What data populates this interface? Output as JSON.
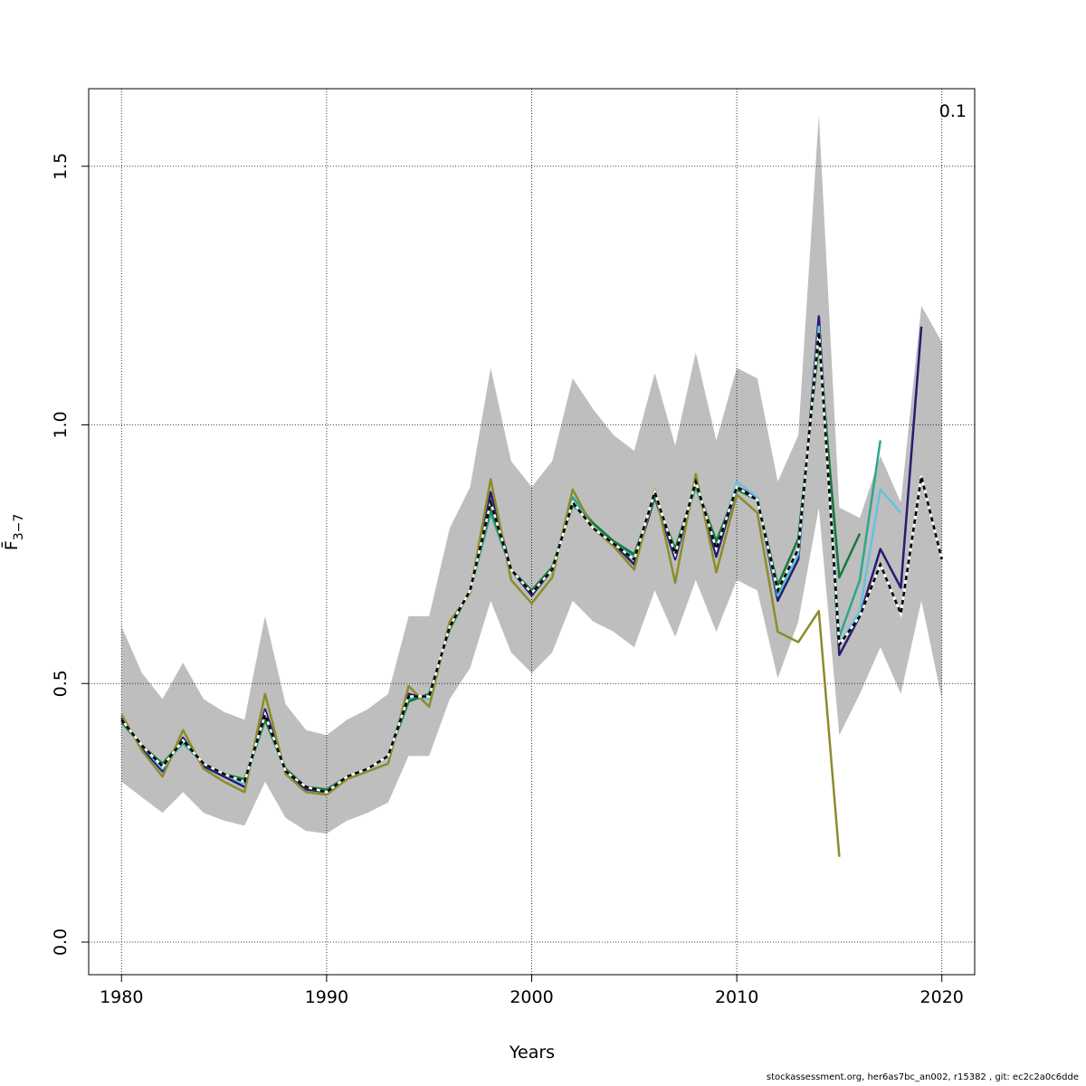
{
  "chart_data": {
    "type": "line",
    "xlabel": "Years",
    "ylabel": "F̄",
    "ylabel_sub": "3−7",
    "corner_label": "0.1",
    "xlim": [
      1978.4,
      2021.6
    ],
    "ylim": [
      -0.063,
      1.65
    ],
    "xticks": [
      1980,
      1990,
      2000,
      2010,
      2020
    ],
    "yticks": [
      0.0,
      0.5,
      1.0,
      1.5
    ],
    "ytick_labels": [
      "0.0",
      "0.5",
      "1.0",
      "1.5"
    ],
    "grid": true,
    "band": {
      "years": [
        1980,
        1981,
        1982,
        1983,
        1984,
        1985,
        1986,
        1987,
        1988,
        1989,
        1990,
        1991,
        1992,
        1993,
        1994,
        1995,
        1996,
        1997,
        1998,
        1999,
        2000,
        2001,
        2002,
        2003,
        2004,
        2005,
        2006,
        2007,
        2008,
        2009,
        2010,
        2011,
        2012,
        2013,
        2014,
        2015,
        2016,
        2017,
        2018,
        2019,
        2020
      ],
      "upper": [
        0.61,
        0.52,
        0.47,
        0.54,
        0.47,
        0.445,
        0.43,
        0.63,
        0.46,
        0.41,
        0.4,
        0.43,
        0.45,
        0.48,
        0.63,
        0.63,
        0.8,
        0.88,
        1.11,
        0.93,
        0.88,
        0.93,
        1.09,
        1.03,
        0.98,
        0.95,
        1.1,
        0.96,
        1.14,
        0.97,
        1.11,
        1.09,
        0.89,
        0.98,
        1.6,
        0.84,
        0.82,
        0.94,
        0.85,
        1.23,
        1.16
      ],
      "lower": [
        0.31,
        0.28,
        0.25,
        0.29,
        0.25,
        0.235,
        0.225,
        0.31,
        0.24,
        0.215,
        0.21,
        0.235,
        0.25,
        0.27,
        0.36,
        0.36,
        0.47,
        0.53,
        0.66,
        0.56,
        0.52,
        0.56,
        0.66,
        0.62,
        0.6,
        0.57,
        0.68,
        0.59,
        0.7,
        0.6,
        0.7,
        0.68,
        0.51,
        0.62,
        0.84,
        0.4,
        0.48,
        0.57,
        0.48,
        0.66,
        0.47
      ]
    },
    "series": [
      {
        "color": "#000000",
        "dashed": true,
        "years": [
          1980,
          1981,
          1982,
          1983,
          1984,
          1985,
          1986,
          1987,
          1988,
          1989,
          1990,
          1991,
          1992,
          1993,
          1994,
          1995,
          1996,
          1997,
          1998,
          1999,
          2000,
          2001,
          2002,
          2003,
          2004,
          2005,
          2006,
          2007,
          2008,
          2009,
          2010,
          2011,
          2012,
          2013,
          2014,
          2015,
          2016,
          2017,
          2018,
          2019,
          2020
        ],
        "values": [
          0.43,
          0.38,
          0.34,
          0.39,
          0.345,
          0.325,
          0.31,
          0.44,
          0.33,
          0.3,
          0.29,
          0.32,
          0.335,
          0.36,
          0.475,
          0.475,
          0.61,
          0.68,
          0.85,
          0.72,
          0.675,
          0.72,
          0.85,
          0.8,
          0.77,
          0.74,
          0.87,
          0.75,
          0.89,
          0.76,
          0.88,
          0.855,
          0.68,
          0.76,
          1.18,
          0.575,
          0.63,
          0.73,
          0.635,
          0.9,
          0.74
        ]
      },
      {
        "color": "#241c73",
        "years": [
          1980,
          1981,
          1982,
          1983,
          1984,
          1985,
          1986,
          1987,
          1988,
          1989,
          1990,
          1991,
          1992,
          1993,
          1994,
          1995,
          1996,
          1997,
          1998,
          1999,
          2000,
          2001,
          2002,
          2003,
          2004,
          2005,
          2006,
          2007,
          2008,
          2009,
          2010,
          2011,
          2012,
          2013,
          2014,
          2015,
          2016,
          2017,
          2018,
          2019
        ],
        "values": [
          0.435,
          0.375,
          0.33,
          0.395,
          0.34,
          0.32,
          0.3,
          0.45,
          0.33,
          0.295,
          0.29,
          0.32,
          0.335,
          0.36,
          0.48,
          0.47,
          0.61,
          0.68,
          0.87,
          0.72,
          0.67,
          0.72,
          0.85,
          0.8,
          0.77,
          0.73,
          0.86,
          0.74,
          0.89,
          0.745,
          0.88,
          0.86,
          0.66,
          0.74,
          1.21,
          0.555,
          0.63,
          0.76,
          0.685,
          1.19
        ]
      },
      {
        "color": "#66c2e0",
        "years": [
          1980,
          1981,
          1982,
          1983,
          1984,
          1985,
          1986,
          1987,
          1988,
          1989,
          1990,
          1991,
          1992,
          1993,
          1994,
          1995,
          1996,
          1997,
          1998,
          1999,
          2000,
          2001,
          2002,
          2003,
          2004,
          2005,
          2006,
          2007,
          2008,
          2009,
          2010,
          2011,
          2012,
          2013,
          2014,
          2015,
          2016,
          2017,
          2018
        ],
        "values": [
          0.43,
          0.38,
          0.335,
          0.39,
          0.345,
          0.325,
          0.305,
          0.44,
          0.33,
          0.3,
          0.29,
          0.32,
          0.335,
          0.36,
          0.475,
          0.47,
          0.61,
          0.68,
          0.85,
          0.72,
          0.675,
          0.72,
          0.86,
          0.8,
          0.77,
          0.74,
          0.87,
          0.75,
          0.89,
          0.76,
          0.89,
          0.86,
          0.67,
          0.75,
          1.19,
          0.575,
          0.64,
          0.875,
          0.83
        ]
      },
      {
        "color": "#2aa88e",
        "years": [
          1980,
          1981,
          1982,
          1983,
          1984,
          1985,
          1986,
          1987,
          1988,
          1989,
          1990,
          1991,
          1992,
          1993,
          1994,
          1995,
          1996,
          1997,
          1998,
          1999,
          2000,
          2001,
          2002,
          2003,
          2004,
          2005,
          2006,
          2007,
          2008,
          2009,
          2010,
          2011,
          2012,
          2013,
          2014,
          2015,
          2016,
          2017
        ],
        "values": [
          0.425,
          0.38,
          0.34,
          0.385,
          0.345,
          0.325,
          0.31,
          0.43,
          0.33,
          0.3,
          0.29,
          0.32,
          0.335,
          0.36,
          0.47,
          0.475,
          0.61,
          0.68,
          0.83,
          0.72,
          0.675,
          0.72,
          0.86,
          0.81,
          0.77,
          0.745,
          0.86,
          0.76,
          0.88,
          0.77,
          0.875,
          0.855,
          0.675,
          0.76,
          1.18,
          0.59,
          0.7,
          0.97
        ]
      },
      {
        "color": "#16773e",
        "years": [
          1980,
          1981,
          1982,
          1983,
          1984,
          1985,
          1986,
          1987,
          1988,
          1989,
          1990,
          1991,
          1992,
          1993,
          1994,
          1995,
          1996,
          1997,
          1998,
          1999,
          2000,
          2001,
          2002,
          2003,
          2004,
          2005,
          2006,
          2007,
          2008,
          2009,
          2010,
          2011,
          2012,
          2013,
          2014,
          2015,
          2016
        ],
        "values": [
          0.425,
          0.38,
          0.345,
          0.39,
          0.345,
          0.325,
          0.315,
          0.43,
          0.335,
          0.3,
          0.295,
          0.32,
          0.335,
          0.36,
          0.465,
          0.48,
          0.605,
          0.68,
          0.84,
          0.72,
          0.68,
          0.725,
          0.845,
          0.81,
          0.775,
          0.75,
          0.86,
          0.76,
          0.885,
          0.775,
          0.875,
          0.855,
          0.69,
          0.78,
          1.16,
          0.705,
          0.79
        ]
      },
      {
        "color": "#8c8c2a",
        "years": [
          1980,
          1981,
          1982,
          1983,
          1984,
          1985,
          1986,
          1987,
          1988,
          1989,
          1990,
          1991,
          1992,
          1993,
          1994,
          1995,
          1996,
          1997,
          1998,
          1999,
          2000,
          2001,
          2002,
          2003,
          2004,
          2005,
          2006,
          2007,
          2008,
          2009,
          2010,
          2011,
          2012,
          2013,
          2014,
          2015
        ],
        "values": [
          0.44,
          0.37,
          0.32,
          0.41,
          0.335,
          0.31,
          0.29,
          0.48,
          0.325,
          0.29,
          0.285,
          0.315,
          0.33,
          0.345,
          0.495,
          0.455,
          0.62,
          0.675,
          0.895,
          0.7,
          0.655,
          0.705,
          0.875,
          0.8,
          0.765,
          0.72,
          0.875,
          0.695,
          0.905,
          0.715,
          0.865,
          0.83,
          0.6,
          0.58,
          0.64,
          0.165
        ]
      }
    ]
  },
  "footer": "stockassessment.org, her6as7bc_an002, r15382 , git: ec2c2a0c6dde"
}
